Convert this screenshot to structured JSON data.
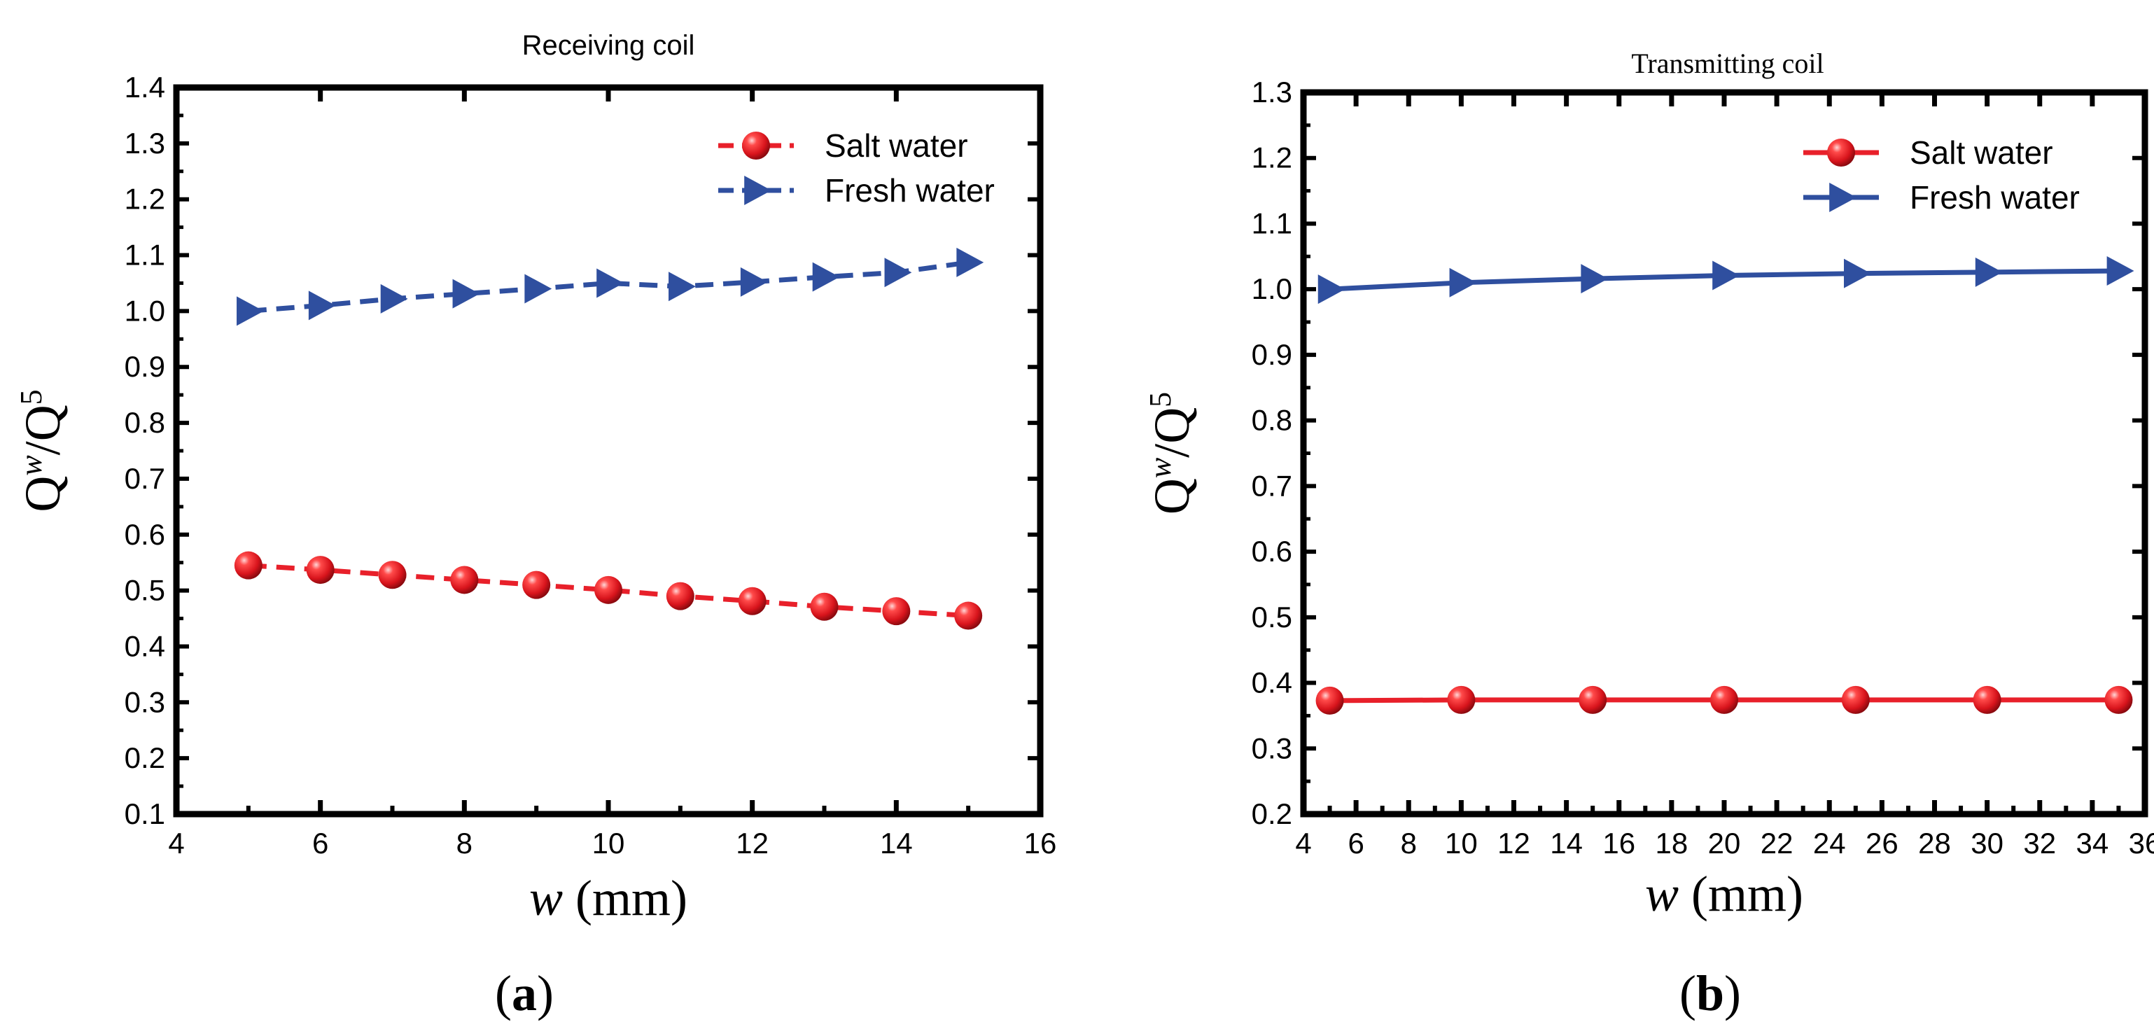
{
  "panels": [
    {
      "panel_label": "(a)",
      "label_open": "(",
      "label_letter": "a",
      "label_close": ")",
      "chart_ref": 0
    },
    {
      "panel_label": "(b)",
      "label_open": "(",
      "label_letter": "b",
      "label_close": ")",
      "chart_ref": 1
    }
  ],
  "ylabel_parts": {
    "base": "Q",
    "sup1": "w",
    "slash": "/Q",
    "sup2": "5"
  },
  "xlabel_parts": {
    "var": "w",
    "unit": " (mm)"
  },
  "colors": {
    "salt": "#e8202a",
    "fresh": "#2f4f9f",
    "axis": "#000000"
  },
  "chart_data": [
    {
      "type": "line",
      "title": "Receiving coil",
      "xlabel": "w (mm)",
      "ylabel": "Q^w/Q^5",
      "xlim": [
        4,
        16
      ],
      "ylim": [
        0.1,
        1.4
      ],
      "xticks": [
        4,
        6,
        8,
        10,
        12,
        14,
        16
      ],
      "xtick_labels": [
        "4",
        "6",
        "8",
        "10",
        "12",
        "14",
        "16"
      ],
      "yticks": [
        0.1,
        0.2,
        0.3,
        0.4,
        0.5,
        0.6,
        0.7,
        0.8,
        0.9,
        1.0,
        1.1,
        1.2,
        1.3,
        1.4
      ],
      "ytick_labels": [
        "0.1",
        "0.2",
        "0.3",
        "0.4",
        "0.5",
        "0.6",
        "0.7",
        "0.8",
        "0.9",
        "1.0",
        "1.1",
        "1.2",
        "1.3",
        "1.4"
      ],
      "legend_position": "top-right",
      "x": [
        5,
        6,
        7,
        8,
        9,
        10,
        11,
        12,
        13,
        14,
        15
      ],
      "series": [
        {
          "name": "Salt water",
          "marker": "sphere",
          "line": "dashed",
          "color": "#e8202a",
          "values": [
            0.545,
            0.537,
            0.528,
            0.519,
            0.51,
            0.501,
            0.49,
            0.481,
            0.471,
            0.463,
            0.455
          ]
        },
        {
          "name": "Fresh water",
          "marker": "triangle-right",
          "line": "dashed",
          "color": "#2f4f9f",
          "values": [
            1.0,
            1.01,
            1.022,
            1.031,
            1.04,
            1.05,
            1.044,
            1.052,
            1.061,
            1.069,
            1.087
          ]
        }
      ]
    },
    {
      "type": "line",
      "title": "Transmitting coil",
      "xlabel": "w (mm)",
      "ylabel": "Q^w/Q^5",
      "xlim": [
        4,
        36
      ],
      "ylim": [
        0.2,
        1.3
      ],
      "xticks": [
        4,
        6,
        8,
        10,
        12,
        14,
        16,
        18,
        20,
        22,
        24,
        26,
        28,
        30,
        32,
        34,
        36
      ],
      "xtick_labels": [
        "4",
        "6",
        "8",
        "10",
        "12",
        "14",
        "16",
        "18",
        "20",
        "22",
        "24",
        "26",
        "28",
        "30",
        "32",
        "34",
        "36"
      ],
      "yticks": [
        0.2,
        0.3,
        0.4,
        0.5,
        0.6,
        0.7,
        0.8,
        0.9,
        1.0,
        1.1,
        1.2,
        1.3
      ],
      "ytick_labels": [
        "0.2",
        "0.3",
        "0.4",
        "0.5",
        "0.6",
        "0.7",
        "0.8",
        "0.9",
        "1.0",
        "1.1",
        "1.2",
        "1.3"
      ],
      "legend_position": "top-right",
      "x": [
        5,
        10,
        15,
        20,
        25,
        30,
        35
      ],
      "series": [
        {
          "name": "Salt water",
          "marker": "sphere",
          "line": "solid",
          "color": "#e8202a",
          "values": [
            0.373,
            0.374,
            0.374,
            0.374,
            0.374,
            0.374,
            0.374
          ]
        },
        {
          "name": "Fresh water",
          "marker": "triangle-right",
          "line": "solid",
          "color": "#2f4f9f",
          "values": [
            1.0,
            1.01,
            1.016,
            1.021,
            1.024,
            1.026,
            1.028
          ]
        }
      ]
    }
  ]
}
